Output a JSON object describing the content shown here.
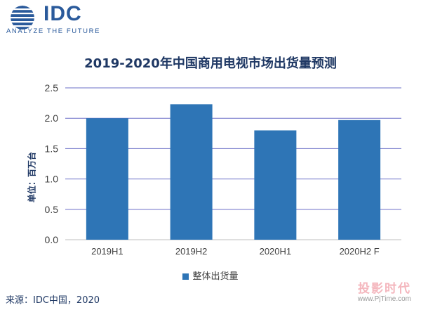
{
  "header": {
    "logo_text": "IDC",
    "tagline": "ANALYZE THE FUTURE"
  },
  "chart_data": {
    "type": "bar",
    "title": "2019-2020年中国商用电视市场出货量预测",
    "ylabel": "单位：百万台",
    "xlabel": "",
    "categories": [
      "2019H1",
      "2019H2",
      "2020H1",
      "2020H2  F"
    ],
    "series": [
      {
        "name": "整体出货量",
        "values": [
          2.0,
          2.23,
          1.8,
          1.97
        ]
      }
    ],
    "yticks": [
      "0.0",
      "0.5",
      "1.0",
      "1.5",
      "2.0",
      "2.5"
    ],
    "ylim": [
      0,
      2.5
    ],
    "grid": true,
    "legend": "bottom",
    "bar_color": "#2e75b6"
  },
  "footer": {
    "source": "来源：IDC中国，2020",
    "watermark": "投影时代",
    "watermark_url": "www.PjTime.com"
  }
}
